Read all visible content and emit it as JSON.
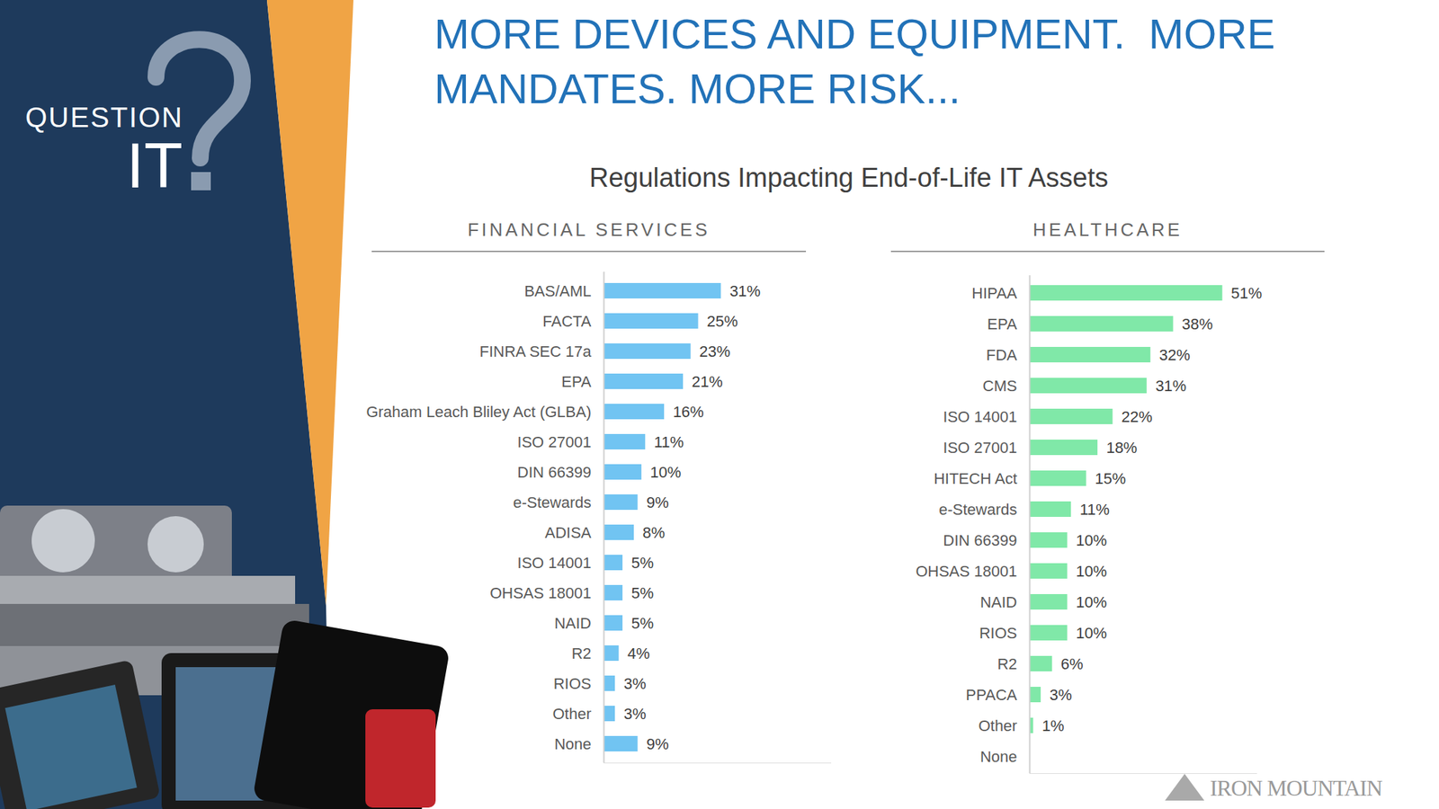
{
  "headline": "MORE DEVICES AND EQUIPMENT.  MORE MANDATES. MORE RISK...",
  "logo_text": [
    "QUESTION",
    "IT"
  ],
  "title": "Regulations Impacting End-of-Life IT Assets",
  "brand": "IRON MOUNTAIN",
  "chart_data": [
    {
      "type": "bar",
      "title": "FINANCIAL SERVICES",
      "orientation": "horizontal",
      "categories": [
        "BAS/AML",
        "FACTA",
        "FINRA SEC 17a",
        "EPA",
        "Graham Leach Bliley Act (GLBA)",
        "ISO 27001",
        "DIN 66399",
        "e-Stewards",
        "ADISA",
        "ISO 14001",
        "OHSAS 18001",
        "NAID",
        "R2",
        "RIOS",
        "Other",
        "None"
      ],
      "values": [
        31,
        25,
        23,
        21,
        16,
        11,
        10,
        9,
        8,
        5,
        5,
        5,
        4,
        3,
        3,
        9
      ],
      "value_labels": [
        "31%",
        "25%",
        "23%",
        "21%",
        "16%",
        "11%",
        "10%",
        "9%",
        "8%",
        "5%",
        "5%",
        "5%",
        "4%",
        "3%",
        "3%",
        "9%"
      ],
      "color": "#71c4f2",
      "xlim": [
        0,
        60
      ],
      "data_labels": true,
      "tick_labels": "y",
      "grid": false
    },
    {
      "type": "bar",
      "title": "HEALTHCARE",
      "orientation": "horizontal",
      "categories": [
        "HIPAA",
        "EPA",
        "FDA",
        "CMS",
        "ISO 14001",
        "ISO 27001",
        "HITECH Act",
        "e-Stewards",
        "DIN 66399",
        "OHSAS 18001",
        "NAID",
        "RIOS",
        "R2",
        "PPACA",
        "Other",
        "None"
      ],
      "values": [
        51,
        38,
        32,
        31,
        22,
        18,
        15,
        11,
        10,
        10,
        10,
        10,
        6,
        3,
        1,
        null
      ],
      "value_labels": [
        "51%",
        "38%",
        "32%",
        "31%",
        "22%",
        "18%",
        "15%",
        "11%",
        "10%",
        "10%",
        "10%",
        "10%",
        "6%",
        "3%",
        "1%",
        null
      ],
      "color": "#80e8a8",
      "xlim": [
        0,
        60
      ],
      "data_labels": true,
      "tick_labels": "y",
      "grid": false
    }
  ]
}
